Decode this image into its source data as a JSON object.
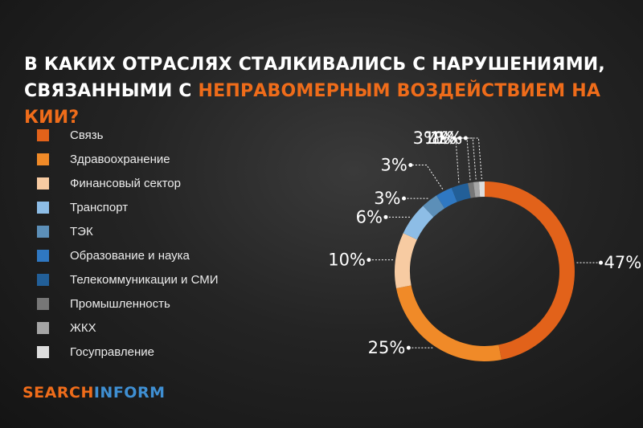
{
  "title": {
    "line1": "В КАКИХ ОТРАСЛЯХ СТАЛКИВАЛИСЬ С НАРУШЕНИЯМИ,",
    "line2_prefix": "СВЯЗАННЫМИ С ",
    "line2_accent": "НЕПРАВОМЕРНЫМ ВОЗДЕЙСТВИЕМ НА КИИ?"
  },
  "logo": {
    "part1": "SEARCH",
    "part2": "INFORM"
  },
  "colors": {
    "accent": "#ef6c1a",
    "brand_blue": "#3f8fd2"
  },
  "chart_data": {
    "type": "pie",
    "subtype": "donut",
    "categories": [
      "Связь",
      "Здравоохранение",
      "Финансовый сектор",
      "Транспорт",
      "ТЭК",
      "Образование и наука",
      "Телекоммуникации и СМИ",
      "Промышленность",
      "ЖКХ",
      "Госуправление"
    ],
    "values": [
      47,
      25,
      10,
      6,
      3,
      3,
      3,
      1,
      1,
      1
    ],
    "value_labels": [
      "47%",
      "25%",
      "10%",
      "6%",
      "3%",
      "3%",
      "3%",
      "1%",
      "1%",
      "1%"
    ],
    "colors": [
      "#e2621a",
      "#f08a28",
      "#f7cba2",
      "#8dbde6",
      "#5c8fb8",
      "#2f78c2",
      "#225f98",
      "#777777",
      "#a5a5a5",
      "#dddddd"
    ],
    "legend_position": "left"
  }
}
